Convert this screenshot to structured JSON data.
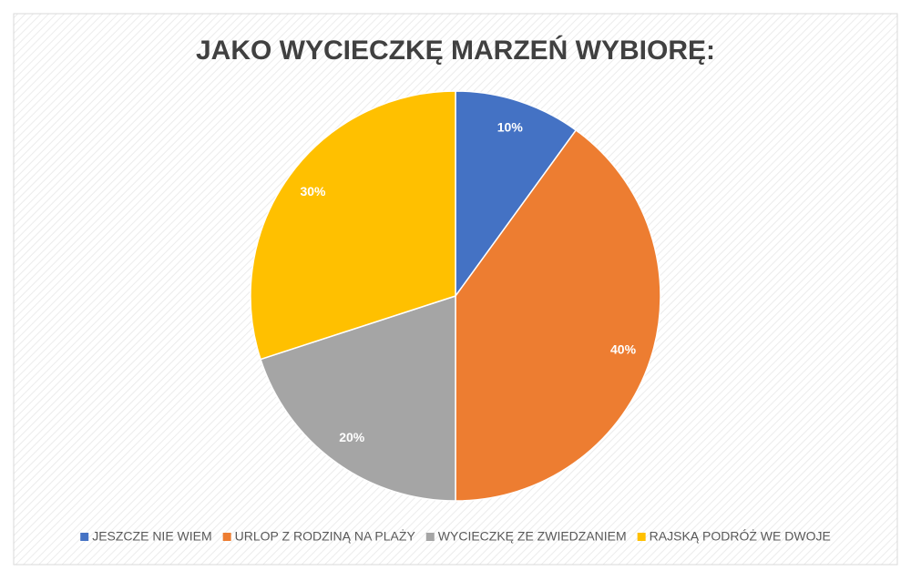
{
  "chart_data": {
    "type": "pie",
    "title": "JAKO WYCIECZKĘ MARZEŃ WYBIORĘ:",
    "categories": [
      "JESZCZE NIE WIEM",
      "URLOP Z RODZINĄ NA PLAŻY",
      "WYCIECZKĘ ZE ZWIEDZANIEM",
      "RAJSKĄ PODRÓŻ WE DWOJE"
    ],
    "values": [
      10,
      40,
      20,
      30
    ],
    "value_labels": [
      "10%",
      "40%",
      "20%",
      "30%"
    ],
    "colors": [
      "#4472c4",
      "#ed7d31",
      "#a5a5a5",
      "#ffc000"
    ],
    "legend": "bottom"
  }
}
